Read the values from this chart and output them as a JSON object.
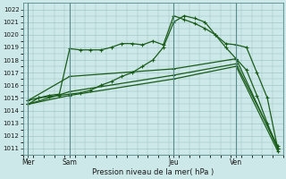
{
  "background_color": "#cce8e8",
  "grid_color": "#9bbfbf",
  "line_color": "#1a5c1a",
  "ylim": [
    1010.5,
    1022.5
  ],
  "yticks": [
    1011,
    1012,
    1013,
    1014,
    1015,
    1016,
    1017,
    1018,
    1019,
    1020,
    1021,
    1022
  ],
  "xlabel": "Pression niveau de la mer( hPa )",
  "xtick_labels": [
    "Mer",
    "Sam",
    "Jeu",
    "Ven"
  ],
  "xtick_positions": [
    0,
    4,
    14,
    20
  ],
  "xlim": [
    -0.5,
    24.5
  ],
  "total_x": 25,
  "curve1_x": [
    0,
    1,
    2,
    3,
    4,
    5,
    6,
    7,
    8,
    9,
    10,
    11,
    12,
    13,
    14,
    15,
    16,
    17,
    18,
    19,
    20,
    21,
    22,
    23,
    24
  ],
  "curve1_y": [
    1014.5,
    1015.0,
    1015.1,
    1015.2,
    1015.3,
    1015.4,
    1015.6,
    1016.0,
    1016.3,
    1016.7,
    1017.0,
    1017.5,
    1018.0,
    1019.0,
    1021.0,
    1021.5,
    1021.3,
    1021.0,
    1020.0,
    1019.0,
    1018.1,
    1017.2,
    1015.2,
    1013.0,
    1011.0
  ],
  "curve2_x": [
    0,
    1,
    2,
    3,
    4,
    5,
    6,
    7,
    8,
    9,
    10,
    11,
    12,
    13,
    14,
    15,
    16,
    17,
    18,
    19,
    20,
    21,
    22,
    23,
    24
  ],
  "curve2_y": [
    1014.8,
    1015.0,
    1015.2,
    1015.3,
    1018.9,
    1018.8,
    1018.8,
    1018.8,
    1019.0,
    1019.3,
    1019.3,
    1019.2,
    1019.5,
    1019.2,
    1021.5,
    1021.2,
    1020.9,
    1020.5,
    1020.0,
    1019.3,
    1019.2,
    1019.0,
    1017.0,
    1015.0,
    1011.0
  ],
  "sparse1_x": [
    0,
    4,
    14,
    20,
    24
  ],
  "sparse1_y": [
    1014.5,
    1015.2,
    1016.5,
    1017.5,
    1010.8
  ],
  "sparse2_x": [
    0,
    4,
    14,
    20,
    24
  ],
  "sparse2_y": [
    1014.8,
    1016.7,
    1017.3,
    1018.1,
    1011.0
  ],
  "sparse3_x": [
    0,
    4,
    14,
    20,
    24
  ],
  "sparse3_y": [
    1014.5,
    1015.5,
    1016.8,
    1017.7,
    1011.2
  ]
}
